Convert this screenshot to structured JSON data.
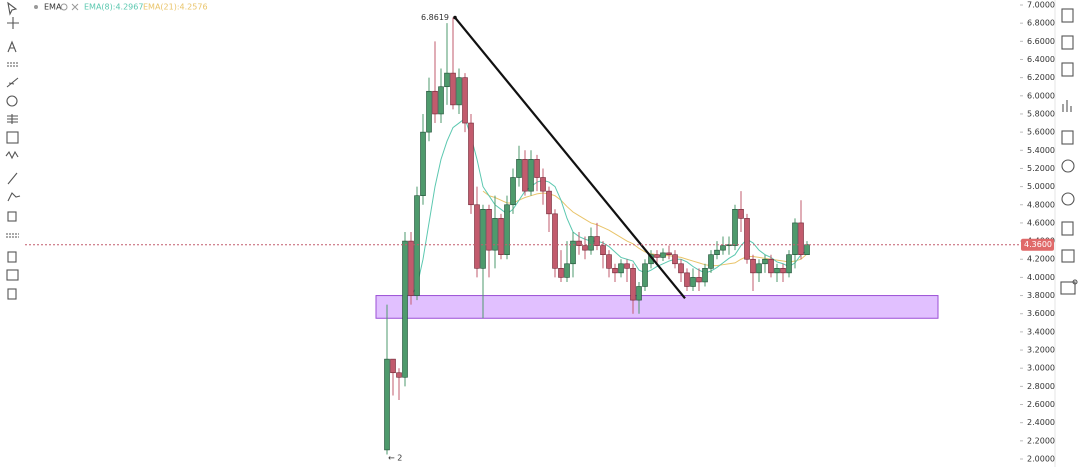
{
  "chart_data": {
    "type": "candlestick",
    "indicator": "EMA",
    "ema8_label": "EMA(8):4.2967",
    "ema21_label": "EMA(21):4.2576",
    "peak_label": "6.8619",
    "low_label": "← 2",
    "up_color": "#4e9a6c",
    "down_color": "#c25b6d",
    "ema8_color": "#5cc8b0",
    "ema21_color": "#e9c46a",
    "ylim": [
      2,
      7
    ],
    "yticks": [
      {
        "value": 2.0,
        "label": "2.0000"
      },
      {
        "value": 2.2,
        "label": "2.2000"
      },
      {
        "value": 2.4,
        "label": "2.4000"
      },
      {
        "value": 2.6,
        "label": "2.6000"
      },
      {
        "value": 2.8,
        "label": "2.8000"
      },
      {
        "value": 3.0,
        "label": "3.0000"
      },
      {
        "value": 3.2,
        "label": "3.2000"
      },
      {
        "value": 3.4,
        "label": "3.4000"
      },
      {
        "value": 3.6,
        "label": "3.6000"
      },
      {
        "value": 3.8,
        "label": "3.8000"
      },
      {
        "value": 4.0,
        "label": "4.0000"
      },
      {
        "value": 4.2,
        "label": "4.2000"
      },
      {
        "value": 4.4,
        "label": "4.4000"
      },
      {
        "value": 4.6,
        "label": "4.6000"
      },
      {
        "value": 4.8,
        "label": "4.8000"
      },
      {
        "value": 5.0,
        "label": "5.0000"
      },
      {
        "value": 5.2,
        "label": "5.2000"
      },
      {
        "value": 5.4,
        "label": "5.4000"
      },
      {
        "value": 5.6,
        "label": "5.6000"
      },
      {
        "value": 5.8,
        "label": "5.8000"
      },
      {
        "value": 6.0,
        "label": "6.0000"
      },
      {
        "value": 6.2,
        "label": "6.2000"
      },
      {
        "value": 6.4,
        "label": "6.4000"
      },
      {
        "value": 6.6,
        "label": "6.6000"
      },
      {
        "value": 6.8,
        "label": "6.8000"
      },
      {
        "value": 7.0,
        "label": "7.0000"
      }
    ],
    "last_price": {
      "value": 4.36,
      "label": "4.3600"
    },
    "trendline": [
      6.8619,
      3.77
    ],
    "zone": [
      3.8,
      3.55
    ],
    "ohlc": [
      [
        2.1,
        3.7,
        2.05,
        3.1
      ],
      [
        3.1,
        3.1,
        2.7,
        2.95
      ],
      [
        2.95,
        3.0,
        2.65,
        2.9
      ],
      [
        2.9,
        4.5,
        2.8,
        4.4
      ],
      [
        4.4,
        4.5,
        3.7,
        3.8
      ],
      [
        3.8,
        5.0,
        3.75,
        4.9
      ],
      [
        4.9,
        5.8,
        4.8,
        5.6
      ],
      [
        5.6,
        6.2,
        5.5,
        6.05
      ],
      [
        6.05,
        6.6,
        5.7,
        5.8
      ],
      [
        5.8,
        6.3,
        5.7,
        6.1
      ],
      [
        6.1,
        6.8,
        5.9,
        6.25
      ],
      [
        6.25,
        6.8619,
        5.85,
        5.9
      ],
      [
        5.9,
        6.3,
        5.8,
        6.2
      ],
      [
        6.2,
        6.25,
        5.6,
        5.7
      ],
      [
        5.7,
        5.8,
        4.7,
        4.8
      ],
      [
        4.8,
        5.0,
        4.0,
        4.1
      ],
      [
        4.1,
        4.8,
        3.55,
        4.75
      ],
      [
        4.75,
        4.8,
        4.0,
        4.3
      ],
      [
        4.3,
        4.9,
        4.1,
        4.65
      ],
      [
        4.65,
        4.7,
        4.2,
        4.25
      ],
      [
        4.25,
        4.9,
        4.2,
        4.8
      ],
      [
        4.8,
        5.2,
        4.7,
        5.1
      ],
      [
        5.1,
        5.45,
        5.0,
        5.3
      ],
      [
        5.3,
        5.4,
        4.9,
        4.95
      ],
      [
        4.95,
        5.4,
        4.9,
        5.3
      ],
      [
        5.3,
        5.35,
        4.95,
        5.1
      ],
      [
        5.1,
        5.2,
        4.8,
        4.95
      ],
      [
        4.95,
        5.0,
        4.5,
        4.7
      ],
      [
        4.7,
        4.75,
        4.0,
        4.1
      ],
      [
        4.1,
        4.3,
        3.95,
        4.0
      ],
      [
        4.0,
        4.4,
        3.95,
        4.15
      ],
      [
        4.15,
        4.5,
        4.0,
        4.4
      ],
      [
        4.4,
        4.5,
        4.25,
        4.35
      ],
      [
        4.35,
        4.45,
        4.2,
        4.3
      ],
      [
        4.3,
        4.55,
        4.25,
        4.45
      ],
      [
        4.45,
        4.6,
        4.3,
        4.35
      ],
      [
        4.35,
        4.4,
        4.1,
        4.25
      ],
      [
        4.25,
        4.3,
        4.0,
        4.1
      ],
      [
        4.1,
        4.15,
        3.95,
        4.05
      ],
      [
        4.05,
        4.2,
        4.0,
        4.15
      ],
      [
        4.15,
        4.2,
        3.95,
        4.1
      ],
      [
        4.1,
        4.15,
        3.6,
        3.75
      ],
      [
        3.75,
        3.95,
        3.6,
        3.9
      ],
      [
        3.9,
        4.2,
        3.85,
        4.15
      ],
      [
        4.15,
        4.3,
        4.1,
        4.25
      ],
      [
        4.25,
        4.3,
        4.15,
        4.22
      ],
      [
        4.22,
        4.32,
        4.18,
        4.27
      ],
      [
        4.27,
        4.35,
        4.2,
        4.25
      ],
      [
        4.25,
        4.3,
        4.1,
        4.15
      ],
      [
        4.15,
        4.2,
        3.95,
        4.05
      ],
      [
        4.05,
        4.1,
        3.85,
        3.9
      ],
      [
        3.9,
        4.1,
        3.85,
        4.0
      ],
      [
        4.0,
        4.1,
        3.85,
        3.95
      ],
      [
        3.95,
        4.15,
        3.9,
        4.1
      ],
      [
        4.1,
        4.3,
        4.05,
        4.25
      ],
      [
        4.25,
        4.4,
        4.2,
        4.3
      ],
      [
        4.3,
        4.45,
        4.25,
        4.35
      ],
      [
        4.35,
        4.45,
        4.25,
        4.36
      ],
      [
        4.35,
        4.8,
        4.3,
        4.75
      ],
      [
        4.75,
        4.95,
        4.5,
        4.65
      ],
      [
        4.65,
        4.7,
        4.15,
        4.2
      ],
      [
        4.2,
        4.25,
        3.85,
        4.05
      ],
      [
        4.05,
        4.2,
        3.95,
        4.15
      ],
      [
        4.15,
        4.25,
        4.05,
        4.2
      ],
      [
        4.2,
        4.25,
        4.0,
        4.05
      ],
      [
        4.05,
        4.15,
        3.95,
        4.1
      ],
      [
        4.1,
        4.15,
        3.95,
        4.05
      ],
      [
        4.05,
        4.3,
        4.0,
        4.25
      ],
      [
        4.25,
        4.65,
        4.1,
        4.6
      ],
      [
        4.6,
        4.85,
        4.2,
        4.25
      ],
      [
        4.25,
        4.4,
        4.25,
        4.36
      ]
    ],
    "ema8": [
      null,
      null,
      null,
      null,
      3.8,
      3.9,
      4.2,
      4.6,
      5.0,
      5.3,
      5.5,
      5.65,
      5.7,
      5.75,
      5.55,
      5.3,
      5.0,
      4.9,
      4.8,
      4.75,
      4.7,
      4.75,
      4.85,
      4.95,
      5.0,
      5.05,
      5.07,
      5.05,
      5.0,
      4.85,
      4.65,
      4.5,
      4.45,
      4.42,
      4.4,
      4.4,
      4.38,
      4.34,
      4.28,
      4.22,
      4.2,
      4.18,
      4.08,
      4.05,
      4.08,
      4.12,
      4.15,
      4.18,
      4.2,
      4.2,
      4.17,
      4.12,
      4.08,
      4.05,
      4.07,
      4.11,
      4.16,
      4.21,
      4.25,
      4.35,
      4.42,
      4.38,
      4.3,
      4.25,
      4.22,
      4.17,
      4.15,
      4.12,
      4.16,
      4.25,
      4.2967
    ],
    "ema21": [
      null,
      null,
      null,
      null,
      null,
      null,
      null,
      null,
      null,
      null,
      null,
      null,
      null,
      null,
      null,
      null,
      4.95,
      4.9,
      4.88,
      4.85,
      4.82,
      4.82,
      4.85,
      4.88,
      4.9,
      4.92,
      4.93,
      4.92,
      4.9,
      4.85,
      4.78,
      4.72,
      4.68,
      4.64,
      4.6,
      4.58,
      4.55,
      4.52,
      4.48,
      4.44,
      4.4,
      4.37,
      4.32,
      4.28,
      4.26,
      4.25,
      4.24,
      4.24,
      4.23,
      4.22,
      4.2,
      4.18,
      4.16,
      4.14,
      4.13,
      4.13,
      4.14,
      4.15,
      4.16,
      4.2,
      4.23,
      4.23,
      4.22,
      4.21,
      4.2,
      4.19,
      4.18,
      4.17,
      4.18,
      4.2,
      4.2576
    ]
  }
}
